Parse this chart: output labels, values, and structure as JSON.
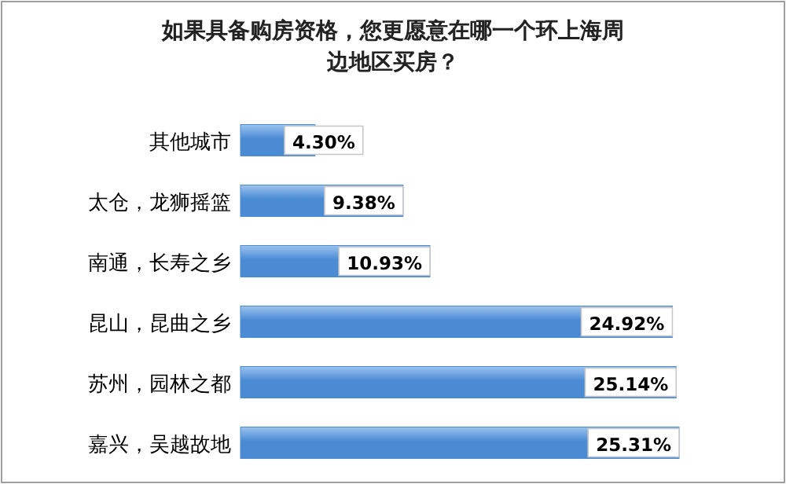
{
  "chart_data": {
    "type": "bar",
    "orientation": "horizontal",
    "title": "如果具备购房资格，您更愿意在哪一个环上海周边地区买房？",
    "categories": [
      "其他城市",
      "太仓，龙狮摇篮",
      "南通，长寿之乡",
      "昆山，昆曲之乡",
      "苏州，园林之都",
      "嘉兴，吴越故地"
    ],
    "values": [
      4.3,
      9.38,
      10.93,
      24.92,
      25.14,
      25.31
    ],
    "value_labels": [
      "4.30%",
      "9.38%",
      "10.93%",
      "24.92%",
      "25.14%",
      "25.31%"
    ],
    "color": "#4a8bd4"
  }
}
